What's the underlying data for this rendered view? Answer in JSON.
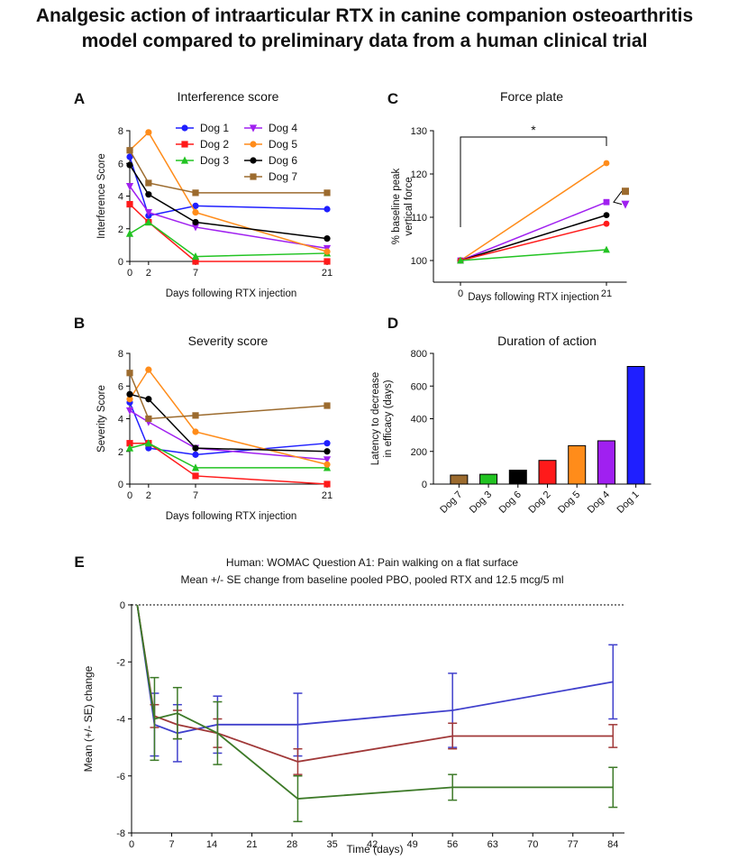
{
  "title_lines": [
    "Analgesic action of intraarticular RTX in canine companion osteoarthritis",
    "model compared to preliminary data from a human clinical trial"
  ],
  "chart_data": [
    {
      "id": "A",
      "panel_label": "A",
      "type": "line",
      "title": "Interference score",
      "xlabel": "Days following RTX injection",
      "ylabel": "Interference Score",
      "x": [
        0,
        2,
        7,
        21
      ],
      "xticks": [
        0,
        2,
        7,
        21
      ],
      "yticks": [
        0,
        2,
        4,
        6,
        8
      ],
      "ylim": [
        0,
        8
      ],
      "legend_position": "top-right",
      "series": [
        {
          "name": "Dog 1",
          "color": "#1f1fff",
          "marker": "circle",
          "values": [
            6.4,
            2.8,
            3.4,
            3.2
          ]
        },
        {
          "name": "Dog 2",
          "color": "#ff1a1a",
          "marker": "square",
          "values": [
            3.5,
            2.4,
            0.0,
            0.0
          ]
        },
        {
          "name": "Dog 3",
          "color": "#22c322",
          "marker": "triangle-up",
          "values": [
            1.7,
            2.4,
            0.3,
            0.5
          ]
        },
        {
          "name": "Dog 4",
          "color": "#a020f0",
          "marker": "triangle-down",
          "values": [
            4.6,
            3.0,
            2.1,
            0.8
          ]
        },
        {
          "name": "Dog 5",
          "color": "#ff8c1a",
          "marker": "circle",
          "values": [
            6.8,
            7.9,
            3.0,
            0.6
          ]
        },
        {
          "name": "Dog 6",
          "color": "#000000",
          "marker": "circle",
          "values": [
            5.9,
            4.1,
            2.4,
            1.4
          ]
        },
        {
          "name": "Dog 7",
          "color": "#9c6b2e",
          "marker": "square",
          "values": [
            6.8,
            4.8,
            4.2,
            4.2
          ]
        }
      ]
    },
    {
      "id": "B",
      "panel_label": "B",
      "type": "line",
      "title": "Severity score",
      "xlabel": "Days following RTX injection",
      "ylabel": "Severity Score",
      "x": [
        0,
        2,
        7,
        21
      ],
      "xticks": [
        0,
        2,
        7,
        21
      ],
      "yticks": [
        0,
        2,
        4,
        6,
        8
      ],
      "ylim": [
        0,
        8
      ],
      "series": [
        {
          "name": "Dog 1",
          "color": "#1f1fff",
          "marker": "circle",
          "values": [
            5.0,
            2.2,
            1.8,
            2.5
          ]
        },
        {
          "name": "Dog 2",
          "color": "#ff1a1a",
          "marker": "square",
          "values": [
            2.5,
            2.5,
            0.5,
            0.0
          ]
        },
        {
          "name": "Dog 3",
          "color": "#22c322",
          "marker": "triangle-up",
          "values": [
            2.2,
            2.5,
            1.0,
            1.0
          ]
        },
        {
          "name": "Dog 4",
          "color": "#a020f0",
          "marker": "triangle-down",
          "values": [
            4.5,
            3.8,
            2.2,
            1.5
          ]
        },
        {
          "name": "Dog 5",
          "color": "#ff8c1a",
          "marker": "circle",
          "values": [
            5.2,
            7.0,
            3.2,
            1.2
          ]
        },
        {
          "name": "Dog 6",
          "color": "#000000",
          "marker": "circle",
          "values": [
            5.5,
            5.2,
            2.2,
            2.0
          ]
        },
        {
          "name": "Dog 7",
          "color": "#9c6b2e",
          "marker": "square",
          "values": [
            6.8,
            4.0,
            4.2,
            4.8
          ]
        }
      ]
    },
    {
      "id": "C",
      "panel_label": "C",
      "type": "line",
      "title": "Force plate",
      "xlabel": "Days following RTX injection",
      "ylabel_lines": [
        "% baseline peak",
        "vertical force"
      ],
      "x": [
        0,
        21
      ],
      "xticks": [
        0,
        21
      ],
      "yticks": [
        100,
        110,
        120,
        130
      ],
      "ylim": [
        95,
        130
      ],
      "significance": {
        "label": "*",
        "from_x": 0,
        "to_x": 21
      },
      "series": [
        {
          "name": "Dog 5",
          "color": "#ff8c1a",
          "marker": "circle",
          "values": [
            100,
            122.5
          ]
        },
        {
          "name": "Dog 4",
          "color": "#a020f0",
          "marker": "square",
          "values": [
            100,
            113.5
          ]
        },
        {
          "name": "Dog 6",
          "color": "#000000",
          "marker": "circle",
          "values": [
            100,
            110.5
          ]
        },
        {
          "name": "Dog 2",
          "color": "#ff1a1a",
          "marker": "circle",
          "values": [
            100,
            108.5
          ]
        },
        {
          "name": "Dog 3",
          "color": "#22c322",
          "marker": "triangle-up",
          "values": [
            100,
            102.5
          ]
        }
      ],
      "offscale_markers": [
        {
          "name": "Dog 7",
          "color": "#9c6b2e",
          "marker": "square",
          "value": 116.0
        },
        {
          "name": "Dog 4",
          "color": "#a020f0",
          "marker": "triangle-down",
          "value": 113.0
        }
      ]
    },
    {
      "id": "D",
      "panel_label": "D",
      "type": "bar",
      "title": "Duration of action",
      "ylabel_lines": [
        "Latency to decrease",
        "in efficacy (days)"
      ],
      "categories": [
        "Dog 7",
        "Dog 3",
        "Dog 6",
        "Dog 2",
        "Dog 5",
        "Dog 4",
        "Dog 1"
      ],
      "values": [
        55,
        60,
        85,
        145,
        235,
        265,
        720
      ],
      "colors": [
        "#9c6b2e",
        "#22c322",
        "#000000",
        "#ff1a1a",
        "#ff8c1a",
        "#a020f0",
        "#1f1fff"
      ],
      "yticks": [
        0,
        200,
        400,
        600,
        800
      ],
      "ylim": [
        0,
        800
      ]
    },
    {
      "id": "E",
      "panel_label": "E",
      "type": "line",
      "title_lines": [
        "Human: WOMAC Question A1: Pain walking on a flat surface",
        "Mean +/- SE change from baseline pooled PBO, pooled RTX and 12.5 mcg/5 ml"
      ],
      "xlabel": "Time (days)",
      "ylabel": "Mean (+/- SE) change",
      "xticks": [
        0,
        7,
        14,
        21,
        28,
        35,
        42,
        49,
        56,
        63,
        70,
        77,
        84
      ],
      "yticks": [
        0,
        -2,
        -4,
        -6,
        -8
      ],
      "xlim": [
        0,
        86
      ],
      "ylim": [
        -8,
        0
      ],
      "series": [
        {
          "name": "pooled PBO",
          "color": "#4040cc",
          "x": [
            1,
            4,
            8,
            15,
            29,
            56,
            84
          ],
          "values": [
            0,
            -4.2,
            -4.5,
            -4.2,
            -4.2,
            -3.7,
            -2.7
          ],
          "errors": [
            0,
            1.1,
            1.0,
            1.0,
            1.1,
            1.3,
            1.3
          ]
        },
        {
          "name": "pooled RTX",
          "color": "#a03838",
          "x": [
            1,
            4,
            8,
            15,
            29,
            56,
            84
          ],
          "values": [
            0,
            -3.9,
            -4.2,
            -4.5,
            -5.5,
            -4.6,
            -4.6
          ],
          "errors": [
            0,
            0.4,
            0.5,
            0.5,
            0.45,
            0.45,
            0.4
          ]
        },
        {
          "name": "12.5 mcg/5 ml",
          "color": "#3d7a28",
          "x": [
            1,
            4,
            8,
            15,
            29,
            56,
            84
          ],
          "values": [
            0,
            -4.0,
            -3.8,
            -4.5,
            -6.8,
            -6.4,
            -6.4
          ],
          "errors": [
            0,
            1.45,
            0.9,
            1.1,
            0.8,
            0.45,
            0.7
          ]
        }
      ]
    }
  ]
}
